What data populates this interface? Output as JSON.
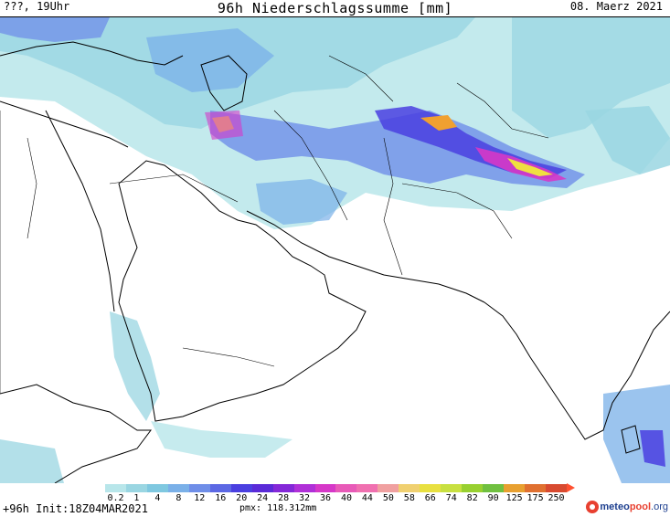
{
  "header": {
    "valid_time": "???, 19Uhr",
    "title": "96h Niederschlagssumme [mm]",
    "date": "08. Maerz 2021"
  },
  "footer": {
    "lead": "+96h",
    "init": "Init:18Z04MAR2021",
    "pmx": "pmx: 118.312mm"
  },
  "logo": {
    "part1": "meteo",
    "part2": "pool",
    "part3": ".org"
  },
  "legend": {
    "labels": [
      "0.2",
      "1",
      "4",
      "8",
      "12",
      "16",
      "20",
      "24",
      "28",
      "32",
      "36",
      "40",
      "44",
      "50",
      "58",
      "66",
      "74",
      "82",
      "90",
      "125",
      "175",
      "250"
    ],
    "colors": [
      "#b8e6ea",
      "#9ad6e2",
      "#7fc8e0",
      "#7ab0e8",
      "#6f8ee8",
      "#5c68e4",
      "#4a3fe0",
      "#5a2ad8",
      "#8428d8",
      "#b030d8",
      "#d638c8",
      "#e85ab8",
      "#f070b0",
      "#f0a0a0",
      "#f0d070",
      "#e8e040",
      "#c8e040",
      "#98d030",
      "#70c040",
      "#e8a030",
      "#e07030",
      "#d84a30"
    ]
  },
  "map": {
    "colors": {
      "light": "#b8e6ea",
      "light2": "#9ad6e2",
      "mid": "#7fc8e0",
      "blue1": "#7ab0e8",
      "blue2": "#6f8ee8",
      "blue3": "#5c68e4",
      "violet": "#4a3fe0",
      "purple": "#8428d8",
      "magenta": "#d638c8",
      "pink": "#f070b0",
      "yellow": "#f0e040",
      "orange": "#f0a030"
    }
  }
}
